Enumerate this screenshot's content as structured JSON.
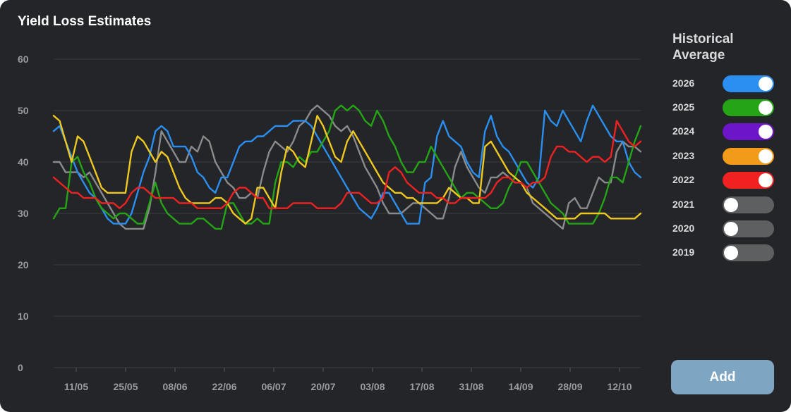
{
  "card": {
    "title": "Yield Loss Estimates"
  },
  "legend": {
    "title": "Historical Average",
    "items": [
      {
        "label": "2026",
        "on": true,
        "color": "#2a8ff0"
      },
      {
        "label": "2025",
        "on": true,
        "color": "#25a515"
      },
      {
        "label": "2024",
        "on": true,
        "color": "#6c15c9"
      },
      {
        "label": "2023",
        "on": true,
        "color": "#f29a1a"
      },
      {
        "label": "2022",
        "on": true,
        "color": "#ef2121"
      },
      {
        "label": "2021",
        "on": false,
        "color": "#5e5f61"
      },
      {
        "label": "2020",
        "on": false,
        "color": "#5e5f61"
      },
      {
        "label": "2019",
        "on": false,
        "color": "#5e5f61"
      }
    ]
  },
  "add_button": {
    "label": "Add"
  },
  "chart_data": {
    "type": "line",
    "x_unit": "day",
    "x_start_label": "28/04",
    "x_tick_labels": [
      "11/05",
      "25/05",
      "08/06",
      "22/06",
      "06/07",
      "20/07",
      "03/08",
      "17/08",
      "31/08",
      "14/09",
      "28/09",
      "12/10"
    ],
    "y_ticks": [
      0,
      10,
      20,
      30,
      40,
      50,
      60
    ],
    "ylim": [
      0,
      60
    ],
    "grid": true,
    "series": [
      {
        "color": "#8a8b8d",
        "values": [
          40,
          40,
          38,
          38,
          38,
          37,
          38,
          36,
          34,
          32,
          30,
          28,
          27,
          27,
          27,
          27,
          31,
          38,
          46,
          44,
          42,
          40,
          40,
          43,
          42,
          45,
          44,
          40,
          38,
          36,
          35,
          33,
          33,
          34,
          33,
          38,
          42,
          44,
          43,
          42,
          44,
          47,
          48,
          50,
          51,
          50,
          49,
          47,
          46,
          47,
          45,
          42,
          39,
          37,
          35,
          32,
          30,
          30,
          30,
          31,
          32,
          32,
          31,
          30,
          29,
          29,
          33,
          39,
          42,
          39,
          37,
          35,
          34,
          37,
          37,
          38,
          37,
          36,
          36,
          35,
          32,
          31,
          30,
          29,
          28,
          27,
          32,
          33,
          31,
          31,
          34,
          37,
          36,
          36,
          42,
          44,
          43,
          43,
          42
        ]
      },
      {
        "color": "#2a8ff0",
        "values": [
          46,
          47,
          44,
          41,
          38,
          36,
          34,
          33,
          31,
          29,
          28,
          28,
          28,
          30,
          34,
          38,
          41,
          46,
          47,
          46,
          43,
          43,
          43,
          41,
          38,
          37,
          35,
          34,
          37,
          37,
          40,
          43,
          44,
          44,
          45,
          45,
          46,
          47,
          47,
          47,
          48,
          48,
          48,
          47,
          45,
          43,
          41,
          39,
          37,
          35,
          33,
          31,
          30,
          29,
          31,
          34,
          34,
          32,
          30,
          28,
          28,
          28,
          36,
          37,
          45,
          48,
          45,
          44,
          43,
          40,
          38,
          37,
          46,
          49,
          45,
          43,
          42,
          40,
          38,
          36,
          35,
          37,
          50,
          48,
          47,
          50,
          48,
          46,
          44,
          48,
          51,
          49,
          47,
          45,
          44,
          44,
          40,
          38,
          37
        ]
      },
      {
        "color": "#25a515",
        "values": [
          29,
          31,
          31,
          40,
          41,
          38,
          36,
          33,
          31,
          30,
          29,
          30,
          30,
          29,
          28,
          28,
          32,
          36,
          32,
          30,
          29,
          28,
          28,
          28,
          29,
          29,
          28,
          27,
          27,
          32,
          32,
          30,
          28,
          28,
          29,
          28,
          28,
          36,
          40,
          40,
          39,
          41,
          40,
          42,
          42,
          44,
          46,
          50,
          51,
          50,
          51,
          50,
          48,
          47,
          50,
          48,
          45,
          43,
          40,
          38,
          38,
          40,
          40,
          43,
          41,
          39,
          37,
          35,
          33,
          34,
          34,
          33,
          32,
          31,
          31,
          32,
          35,
          37,
          40,
          40,
          38,
          36,
          34,
          32,
          31,
          30,
          28,
          28,
          28,
          28,
          28,
          30,
          33,
          37,
          37,
          36,
          40,
          44,
          47
        ]
      },
      {
        "color": "#eec81f",
        "values": [
          49,
          48,
          44,
          40,
          45,
          44,
          41,
          38,
          35,
          34,
          34,
          34,
          34,
          42,
          45,
          44,
          42,
          40,
          42,
          41,
          38,
          35,
          33,
          32,
          32,
          32,
          32,
          33,
          33,
          32,
          30,
          29,
          28,
          29,
          35,
          35,
          33,
          31,
          38,
          43,
          42,
          40,
          39,
          44,
          49,
          47,
          44,
          41,
          40,
          44,
          46,
          44,
          42,
          40,
          38,
          36,
          35,
          34,
          34,
          33,
          33,
          32,
          32,
          32,
          32,
          33,
          35,
          34,
          33,
          33,
          32,
          32,
          43,
          44,
          42,
          40,
          38,
          37,
          36,
          34,
          33,
          32,
          31,
          30,
          29,
          29,
          29,
          29,
          30,
          30,
          30,
          30,
          30,
          29,
          29,
          29,
          29,
          29,
          30
        ]
      },
      {
        "color": "#ef2121",
        "values": [
          37,
          36,
          35,
          34,
          34,
          33,
          33,
          33,
          32,
          32,
          32,
          31,
          32,
          34,
          35,
          35,
          34,
          33,
          33,
          33,
          33,
          32,
          32,
          32,
          31,
          31,
          31,
          31,
          31,
          32,
          34,
          35,
          35,
          34,
          33,
          33,
          31,
          31,
          31,
          31,
          32,
          32,
          32,
          32,
          31,
          31,
          31,
          31,
          32,
          34,
          34,
          34,
          33,
          32,
          32,
          33,
          38,
          39,
          38,
          36,
          35,
          34,
          34,
          34,
          33,
          33,
          32,
          32,
          33,
          33,
          33,
          33,
          33,
          34,
          36,
          37,
          37,
          36,
          36,
          35,
          36,
          36,
          37,
          41,
          43,
          43,
          42,
          42,
          41,
          40,
          41,
          41,
          40,
          41,
          48,
          46,
          44,
          43,
          44
        ]
      }
    ]
  }
}
